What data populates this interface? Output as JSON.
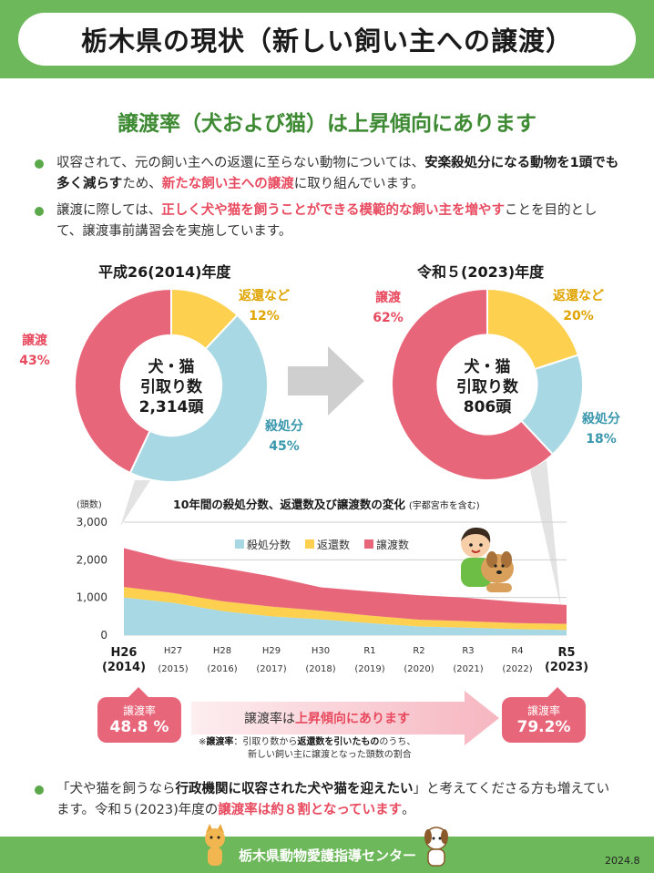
{
  "header": {
    "title": "栃木県の現状（新しい飼い主への譲渡）"
  },
  "subtitle": "譲渡率（犬および猫）は上昇傾向にあります",
  "bullets": [
    {
      "t1": "収容されて、元の飼い主への返還に至らない動物については、",
      "b1": "安楽殺処分になる動物を1頭でも多く減らす",
      "t2": "ため、",
      "r1": "新たな飼い主への譲渡",
      "t3": "に取り組んでいます。"
    },
    {
      "t1": "譲渡に際しては、",
      "r1": "正しく犬や猫を飼うことができる模範的な飼い主を増やす",
      "t2": "ことを目的として、譲渡事前講習会を実施しています。"
    },
    {
      "t1": "「犬や猫を飼うなら",
      "b1": "行政機関に収容された犬や猫を迎えたい",
      "t2": "」と考えてくださる方も増えています。令和５(2023)年度の",
      "r1": "譲渡率は約８割となっています",
      "t3": "。"
    }
  ],
  "chart_data": [
    {
      "type": "pie",
      "title": "平成26(2014)年度",
      "center": [
        "犬・猫",
        "引取り数",
        "2,314頭"
      ],
      "slices": [
        {
          "label": "返還など",
          "value": 12,
          "pct": "12%",
          "color": "#fdd04f"
        },
        {
          "label": "殺処分",
          "value": 45,
          "pct": "45%",
          "color": "#a7d8e3"
        },
        {
          "label": "譲渡",
          "value": 43,
          "pct": "43%",
          "color": "#e8667a"
        }
      ]
    },
    {
      "type": "pie",
      "title": "令和５(2023)年度",
      "center": [
        "犬・猫",
        "引取り数",
        "806頭"
      ],
      "slices": [
        {
          "label": "返還など",
          "value": 20,
          "pct": "20%",
          "color": "#fdd04f"
        },
        {
          "label": "殺処分",
          "value": 18,
          "pct": "18%",
          "color": "#a7d8e3"
        },
        {
          "label": "譲渡",
          "value": 62,
          "pct": "62%",
          "color": "#e8667a"
        }
      ]
    },
    {
      "type": "area",
      "title": "10年間の殺処分数、返還数及び譲渡数の変化",
      "title_note": "(宇都宮市を含む)",
      "ylabel": "(頭数)",
      "ylim": [
        0,
        3000
      ],
      "yticks": [
        "0",
        "1,000",
        "2,000",
        "3,000"
      ],
      "x_top": [
        "H26",
        "H27",
        "H28",
        "H29",
        "H30",
        "R1",
        "R2",
        "R3",
        "R4",
        "R5"
      ],
      "x_bottom": [
        "(2014)",
        "(2015)",
        "(2016)",
        "(2017)",
        "(2018)",
        "(2019)",
        "(2020)",
        "(2021)",
        "(2022)",
        "(2023)"
      ],
      "series": [
        {
          "name": "殺処分数",
          "color": "#a7d8e3",
          "values": [
            1000,
            860,
            640,
            500,
            420,
            320,
            230,
            200,
            160,
            140
          ]
        },
        {
          "name": "返還数",
          "color": "#fdd04f",
          "values": [
            280,
            260,
            260,
            260,
            230,
            200,
            180,
            170,
            160,
            160
          ]
        },
        {
          "name": "譲渡数",
          "color": "#e8667a",
          "values": [
            1030,
            860,
            890,
            800,
            620,
            640,
            650,
            620,
            560,
            500
          ]
        }
      ]
    }
  ],
  "rates": {
    "left_label": "譲渡率",
    "left_value": "48.8 %",
    "right_label": "譲渡率",
    "right_value": "79.2%",
    "arrow_text_1": "譲渡率は",
    "arrow_text_2": "上昇傾向にあります"
  },
  "note": {
    "mark": "※",
    "bold": "譲渡率",
    "t1": "：引取り数から",
    "b2": "返還数を引いたもの",
    "t2": "のうち、",
    "line2": "新しい飼い主に譲渡となった頭数の割合"
  },
  "footer": {
    "org": "栃木県動物愛護指導センター",
    "date": "2024.8"
  },
  "colors": {
    "green": "#6cb85a",
    "red": "#e8667a",
    "yellow": "#fdd04f",
    "blue": "#a7d8e3"
  }
}
